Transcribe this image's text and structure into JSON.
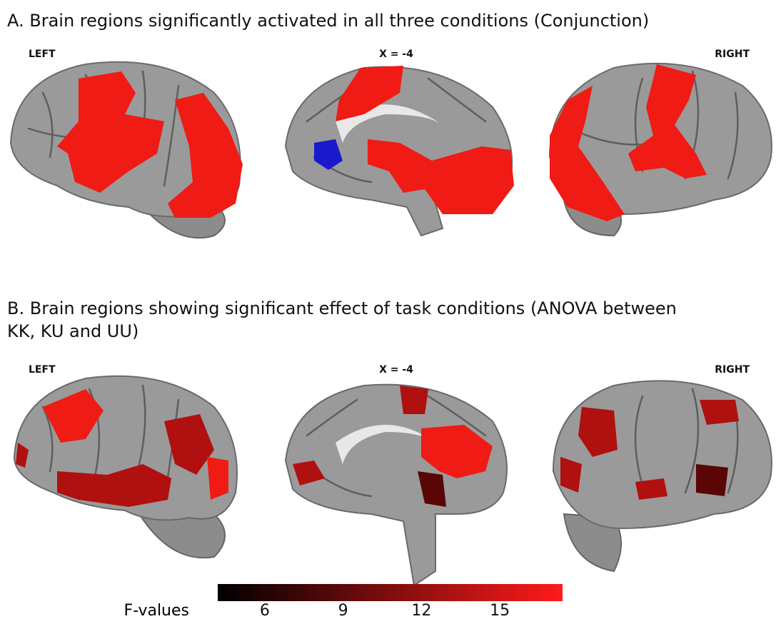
{
  "panel_a": {
    "title": "A. Brain regions significantly activated in all three conditions (Conjunction)",
    "labels": [
      "LEFT",
      "X = -4",
      "RIGHT"
    ]
  },
  "panel_b": {
    "title_lines": [
      "B. Brain regions showing significant effect of task conditions (ANOVA between",
      "KK, KU and UU)"
    ],
    "labels": [
      "LEFT",
      "X = -4",
      "RIGHT"
    ]
  },
  "colorbar": {
    "label": "F-values",
    "range": [
      4.2,
      17.4
    ],
    "ticks": [
      6,
      9,
      12,
      15
    ],
    "colors": [
      "#000000",
      "#ff1a1a"
    ]
  }
}
